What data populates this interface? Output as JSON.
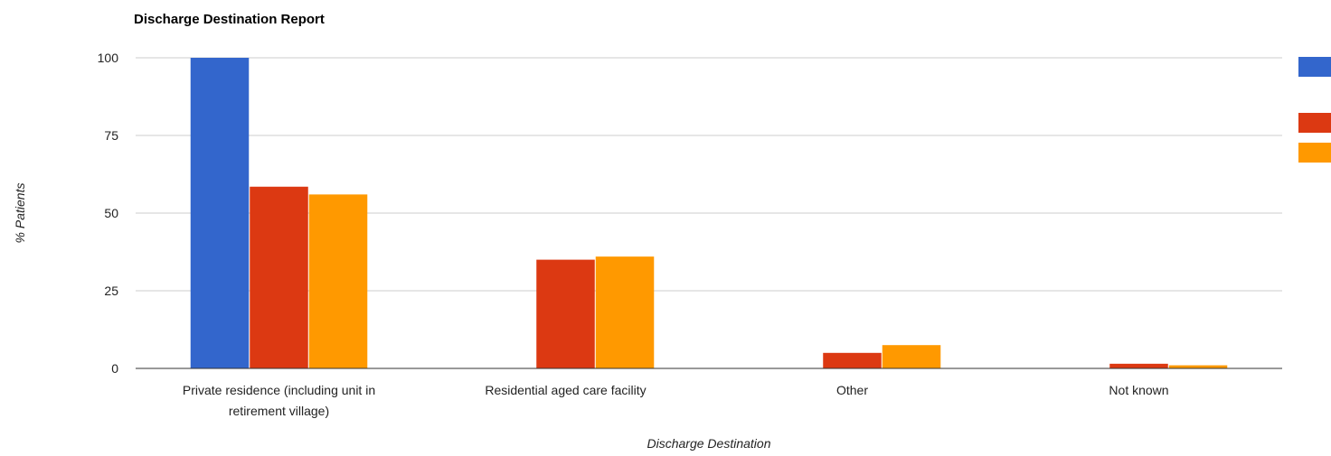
{
  "chart_data": {
    "type": "bar",
    "title": "Discharge Destination Report",
    "xlabel": "Discharge Destination",
    "ylabel": "% Patients",
    "ylim": [
      0,
      100
    ],
    "yticks": [
      0,
      25,
      50,
      75,
      100
    ],
    "grid": true,
    "legend": "right",
    "categories": [
      [
        "Private residence (including unit in",
        "retirement village)"
      ],
      [
        "Residential aged care facility"
      ],
      [
        "Other"
      ],
      [
        "Not known"
      ]
    ],
    "series": [
      {
        "color": "#3366cc",
        "values": [
          100,
          0,
          0,
          0
        ]
      },
      {
        "color": "#dc3912",
        "values": [
          58.5,
          35,
          5,
          1.5
        ]
      },
      {
        "color": "#ff9900",
        "values": [
          56,
          36,
          7.5,
          1
        ]
      }
    ]
  }
}
